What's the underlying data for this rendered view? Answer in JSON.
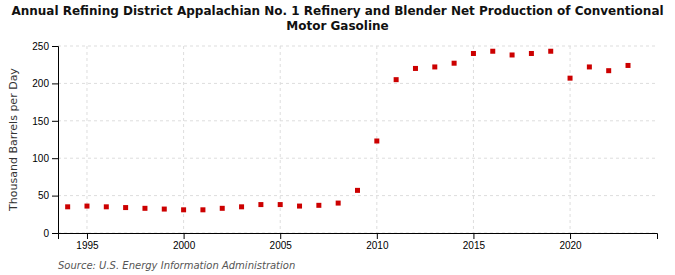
{
  "chart_data": {
    "type": "scatter",
    "title": "Annual Refining District Appalachian No. 1 Refinery and Blender Net Production of Conventional\nMotor Gasoline",
    "y_label": "Thousand Barrels per Day",
    "annotations": [
      "Source: U.S. Energy Information Administration"
    ],
    "x": [
      1994,
      1995,
      1996,
      1997,
      1998,
      1999,
      2000,
      2001,
      2002,
      2003,
      2004,
      2005,
      2006,
      2007,
      2008,
      2009,
      2010,
      2011,
      2012,
      2013,
      2014,
      2015,
      2016,
      2017,
      2018,
      2019,
      2020,
      2021,
      2022,
      2023
    ],
    "values": [
      35,
      36,
      35,
      34,
      33,
      32,
      31,
      31,
      33,
      35,
      38,
      38,
      36,
      37,
      40,
      57,
      123,
      205,
      220,
      222,
      227,
      240,
      243,
      238,
      240,
      243,
      207,
      222,
      217,
      224
    ],
    "color": "#cc0000",
    "marker": "square",
    "xlim": [
      1993.5,
      2024.5
    ],
    "xticks": [
      1995,
      2000,
      2005,
      2010,
      2015,
      2020
    ],
    "ylim": [
      0,
      250
    ],
    "yticks": [
      0,
      50,
      100,
      150,
      200,
      250
    ],
    "grid": true
  }
}
